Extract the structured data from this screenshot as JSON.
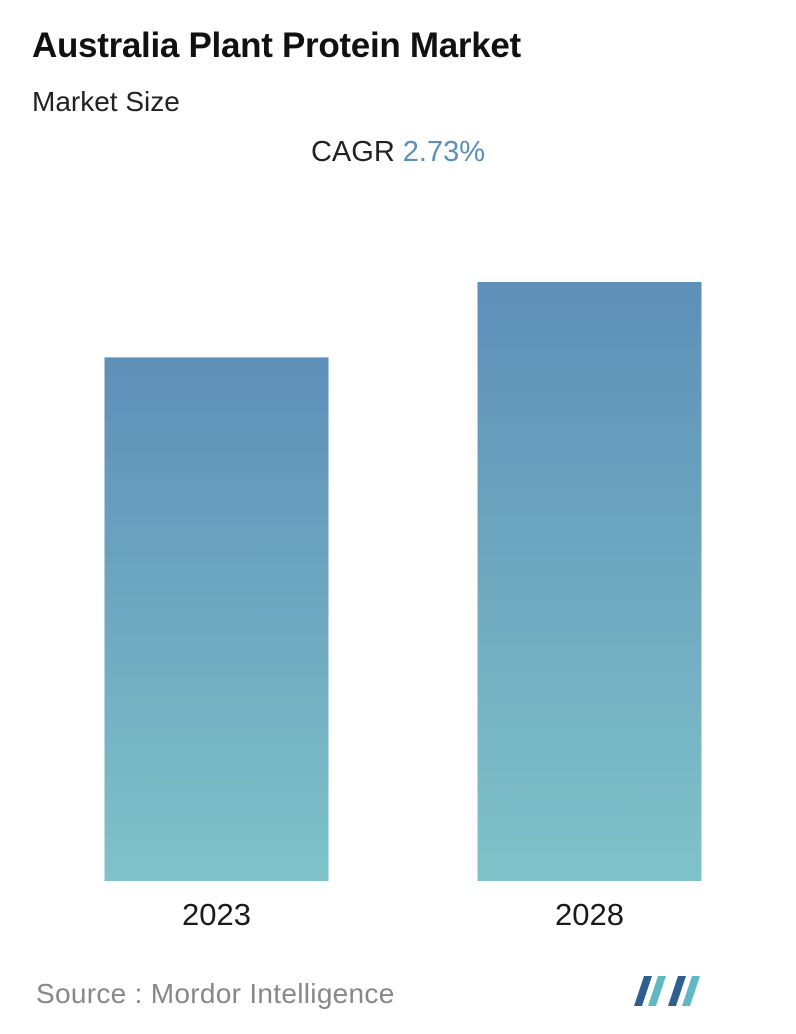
{
  "title": "Australia Plant Protein Market",
  "subtitle": "Market Size",
  "cagr": {
    "label": "CAGR",
    "value": "2.73%"
  },
  "source": {
    "label": "Source :",
    "name": "Mordor Intelligence"
  },
  "colors": {
    "bar_top": "#5e8fb8",
    "bar_bottom": "#7fc3c9",
    "accent": "#5b8fb7",
    "logo_dark": "#2e5f8e",
    "logo_light": "#5fb8c4"
  },
  "logo": {
    "icon": "mordor-intelligence-logo-icon"
  },
  "chart_data": {
    "type": "bar",
    "categories": [
      "2023",
      "2028"
    ],
    "values": [
      1.0,
      1.144
    ],
    "title": "Australia Plant Protein Market",
    "subtitle": "Market Size",
    "xlabel": "",
    "ylabel": "",
    "ylim": [
      0,
      1.144
    ],
    "grid": false,
    "legend": "none"
  }
}
